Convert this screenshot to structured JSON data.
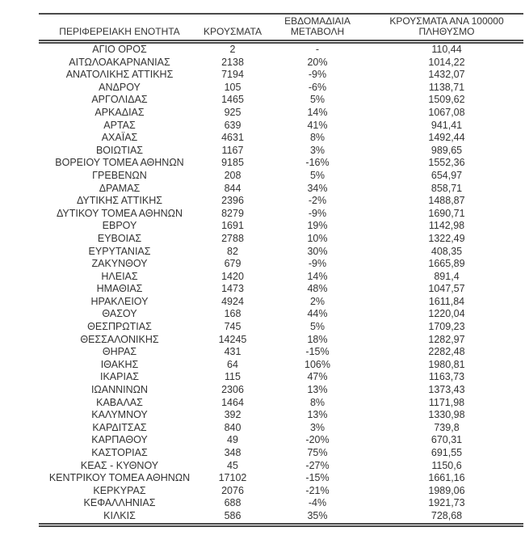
{
  "colors": {
    "background": "#ffffff",
    "text": "#333333",
    "border": "#4a4a4a"
  },
  "table": {
    "columns": [
      {
        "id": "region",
        "label_lines": [
          "ΠΕΡΙΦΕΡΕΙΑΚΗ ΕΝΟΤΗΤΑ"
        ]
      },
      {
        "id": "cases",
        "label_lines": [
          "ΚΡΟΥΣΜΑΤΑ"
        ]
      },
      {
        "id": "weekly_change",
        "label_lines": [
          "ΕΒΔΟΜΑΔΙΑΙΑ",
          "ΜΕΤΑΒΟΛΗ"
        ]
      },
      {
        "id": "cases_per_100k",
        "label_lines": [
          "ΚΡΟΥΣΜΑΤΑ ΑΝΑ 100000",
          "ΠΛΗΘΥΣΜΟ"
        ]
      }
    ],
    "rows": [
      {
        "region": "ΑΓΙΟ ΟΡΟΣ",
        "cases": "2",
        "weekly_change": "-",
        "cases_per_100k": "110,44"
      },
      {
        "region": "ΑΙΤΩΛΟΑΚΑΡΝΑΝΙΑΣ",
        "cases": "2138",
        "weekly_change": "20%",
        "cases_per_100k": "1014,22"
      },
      {
        "region": "ΑΝΑΤΟΛΙΚΗΣ ΑΤΤΙΚΗΣ",
        "cases": "7194",
        "weekly_change": "-9%",
        "cases_per_100k": "1432,07"
      },
      {
        "region": "ΑΝΔΡΟΥ",
        "cases": "105",
        "weekly_change": "-6%",
        "cases_per_100k": "1138,71"
      },
      {
        "region": "ΑΡΓΟΛΙΔΑΣ",
        "cases": "1465",
        "weekly_change": "5%",
        "cases_per_100k": "1509,62"
      },
      {
        "region": "ΑΡΚΑΔΙΑΣ",
        "cases": "925",
        "weekly_change": "14%",
        "cases_per_100k": "1067,08"
      },
      {
        "region": "ΑΡΤΑΣ",
        "cases": "639",
        "weekly_change": "41%",
        "cases_per_100k": "941,41"
      },
      {
        "region": "ΑΧΑΪΑΣ",
        "cases": "4631",
        "weekly_change": "8%",
        "cases_per_100k": "1492,44"
      },
      {
        "region": "ΒΟΙΩΤΙΑΣ",
        "cases": "1167",
        "weekly_change": "3%",
        "cases_per_100k": "989,65"
      },
      {
        "region": "ΒΟΡΕΙΟΥ ΤΟΜΕΑ ΑΘΗΝΩΝ",
        "cases": "9185",
        "weekly_change": "-16%",
        "cases_per_100k": "1552,36"
      },
      {
        "region": "ΓΡΕΒΕΝΩΝ",
        "cases": "208",
        "weekly_change": "5%",
        "cases_per_100k": "654,97"
      },
      {
        "region": "ΔΡΑΜΑΣ",
        "cases": "844",
        "weekly_change": "34%",
        "cases_per_100k": "858,71"
      },
      {
        "region": "ΔΥΤΙΚΗΣ ΑΤΤΙΚΗΣ",
        "cases": "2396",
        "weekly_change": "-2%",
        "cases_per_100k": "1488,87"
      },
      {
        "region": "ΔΥΤΙΚΟΥ ΤΟΜΕΑ ΑΘΗΝΩΝ",
        "cases": "8279",
        "weekly_change": "-9%",
        "cases_per_100k": "1690,71"
      },
      {
        "region": "ΕΒΡΟΥ",
        "cases": "1691",
        "weekly_change": "19%",
        "cases_per_100k": "1142,98"
      },
      {
        "region": "ΕΥΒΟΙΑΣ",
        "cases": "2788",
        "weekly_change": "10%",
        "cases_per_100k": "1322,49"
      },
      {
        "region": "ΕΥΡΥΤΑΝΙΑΣ",
        "cases": "82",
        "weekly_change": "30%",
        "cases_per_100k": "408,35"
      },
      {
        "region": "ΖΑΚΥΝΘΟΥ",
        "cases": "679",
        "weekly_change": "-9%",
        "cases_per_100k": "1665,89"
      },
      {
        "region": "ΗΛΕΙΑΣ",
        "cases": "1420",
        "weekly_change": "14%",
        "cases_per_100k": "891,4"
      },
      {
        "region": "ΗΜΑΘΙΑΣ",
        "cases": "1473",
        "weekly_change": "48%",
        "cases_per_100k": "1047,57"
      },
      {
        "region": "ΗΡΑΚΛΕΙΟΥ",
        "cases": "4924",
        "weekly_change": "2%",
        "cases_per_100k": "1611,84"
      },
      {
        "region": "ΘΑΣΟΥ",
        "cases": "168",
        "weekly_change": "44%",
        "cases_per_100k": "1220,04"
      },
      {
        "region": "ΘΕΣΠΡΩΤΙΑΣ",
        "cases": "745",
        "weekly_change": "5%",
        "cases_per_100k": "1709,23"
      },
      {
        "region": "ΘΕΣΣΑΛΟΝΙΚΗΣ",
        "cases": "14245",
        "weekly_change": "18%",
        "cases_per_100k": "1282,97"
      },
      {
        "region": "ΘΗΡΑΣ",
        "cases": "431",
        "weekly_change": "-15%",
        "cases_per_100k": "2282,48"
      },
      {
        "region": "ΙΘΑΚΗΣ",
        "cases": "64",
        "weekly_change": "106%",
        "cases_per_100k": "1980,81"
      },
      {
        "region": "ΙΚΑΡΙΑΣ",
        "cases": "115",
        "weekly_change": "47%",
        "cases_per_100k": "1163,73"
      },
      {
        "region": "ΙΩΑΝΝΙΝΩΝ",
        "cases": "2306",
        "weekly_change": "13%",
        "cases_per_100k": "1373,43"
      },
      {
        "region": "ΚΑΒΑΛΑΣ",
        "cases": "1464",
        "weekly_change": "8%",
        "cases_per_100k": "1171,98"
      },
      {
        "region": "ΚΑΛΥΜΝΟΥ",
        "cases": "392",
        "weekly_change": "13%",
        "cases_per_100k": "1330,98"
      },
      {
        "region": "ΚΑΡΔΙΤΣΑΣ",
        "cases": "840",
        "weekly_change": "3%",
        "cases_per_100k": "739,8"
      },
      {
        "region": "ΚΑΡΠΑΘΟΥ",
        "cases": "49",
        "weekly_change": "-20%",
        "cases_per_100k": "670,31"
      },
      {
        "region": "ΚΑΣΤΟΡΙΑΣ",
        "cases": "348",
        "weekly_change": "75%",
        "cases_per_100k": "691,55"
      },
      {
        "region": "ΚΕΑΣ - ΚΥΘΝΟΥ",
        "cases": "45",
        "weekly_change": "-27%",
        "cases_per_100k": "1150,6"
      },
      {
        "region": "ΚΕΝΤΡΙΚΟΥ ΤΟΜΕΑ ΑΘΗΝΩΝ",
        "cases": "17102",
        "weekly_change": "-15%",
        "cases_per_100k": "1661,16"
      },
      {
        "region": "ΚΕΡΚΥΡΑΣ",
        "cases": "2076",
        "weekly_change": "-21%",
        "cases_per_100k": "1989,06"
      },
      {
        "region": "ΚΕΦΑΛΛΗΝΙΑΣ",
        "cases": "688",
        "weekly_change": "-4%",
        "cases_per_100k": "1921,73"
      },
      {
        "region": "ΚΙΛΚΙΣ",
        "cases": "586",
        "weekly_change": "35%",
        "cases_per_100k": "728,68"
      }
    ]
  }
}
